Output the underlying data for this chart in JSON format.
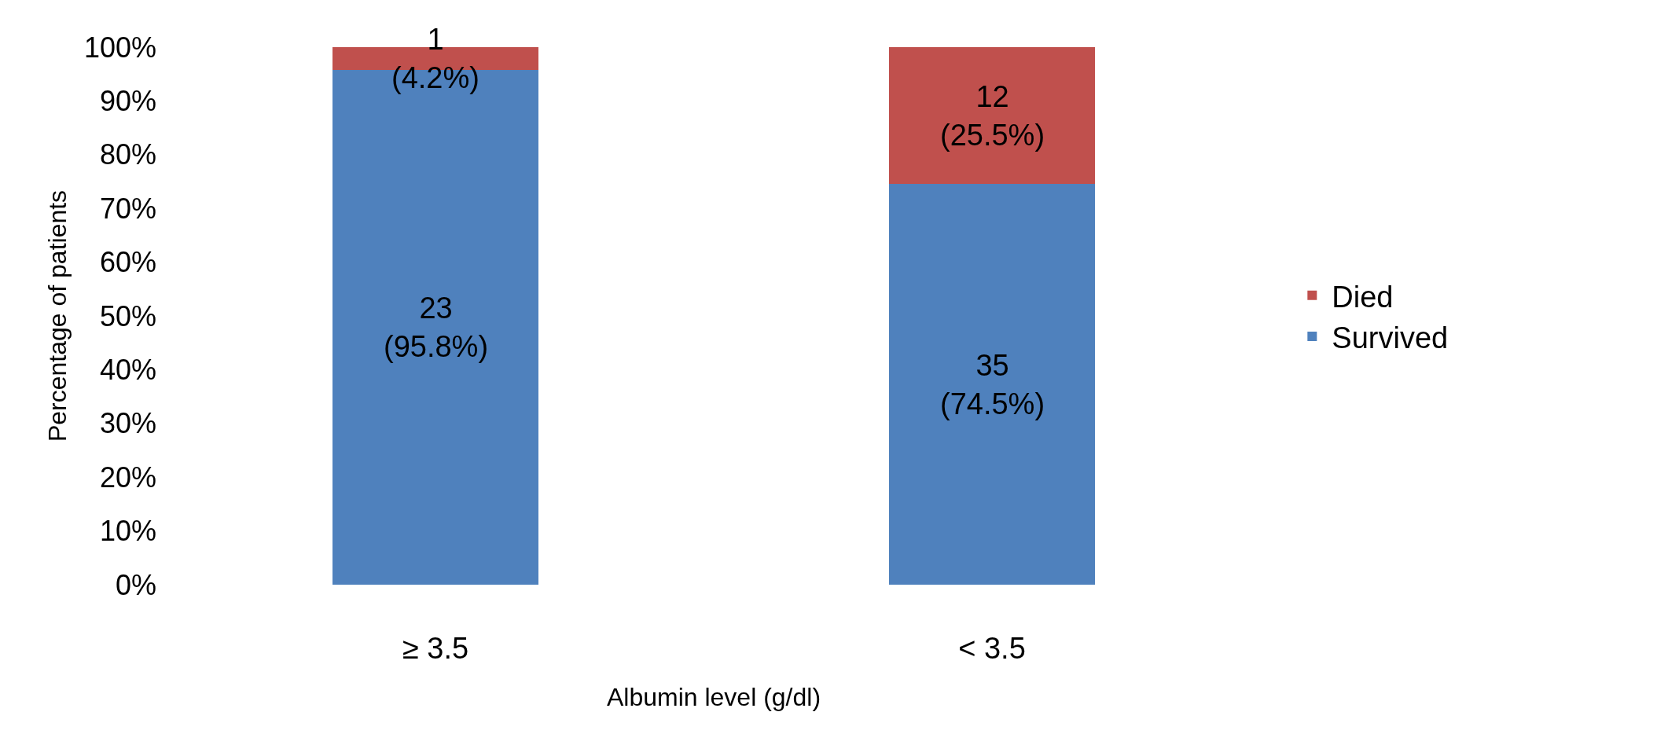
{
  "chart_data": {
    "type": "bar",
    "stacked": true,
    "xlabel": "Albumin level (g/dl)",
    "ylabel": "Percentage of patients",
    "categories": [
      "≥ 3.5",
      "< 3.5"
    ],
    "series": [
      {
        "name": "Survived",
        "color": "#4f81bd",
        "values": [
          95.8,
          74.5
        ],
        "value_labels": [
          "23\n(95.8%)",
          "35\n(74.5%)"
        ]
      },
      {
        "name": "Died",
        "color": "#c0504d",
        "values": [
          4.2,
          25.5
        ],
        "value_labels": [
          "1\n(4.2%)",
          "12\n(25.5%)"
        ]
      }
    ],
    "ylim": [
      0,
      100
    ],
    "yticks": [
      {
        "value": 0,
        "label": "0%"
      },
      {
        "value": 10,
        "label": "10%"
      },
      {
        "value": 20,
        "label": "20%"
      },
      {
        "value": 30,
        "label": "30%"
      },
      {
        "value": 40,
        "label": "40%"
      },
      {
        "value": 50,
        "label": "50%"
      },
      {
        "value": 60,
        "label": "60%"
      },
      {
        "value": 70,
        "label": "70%"
      },
      {
        "value": 80,
        "label": "80%"
      },
      {
        "value": 90,
        "label": "90%"
      },
      {
        "value": 100,
        "label": "100%"
      }
    ],
    "grid": false,
    "legend": "right"
  }
}
